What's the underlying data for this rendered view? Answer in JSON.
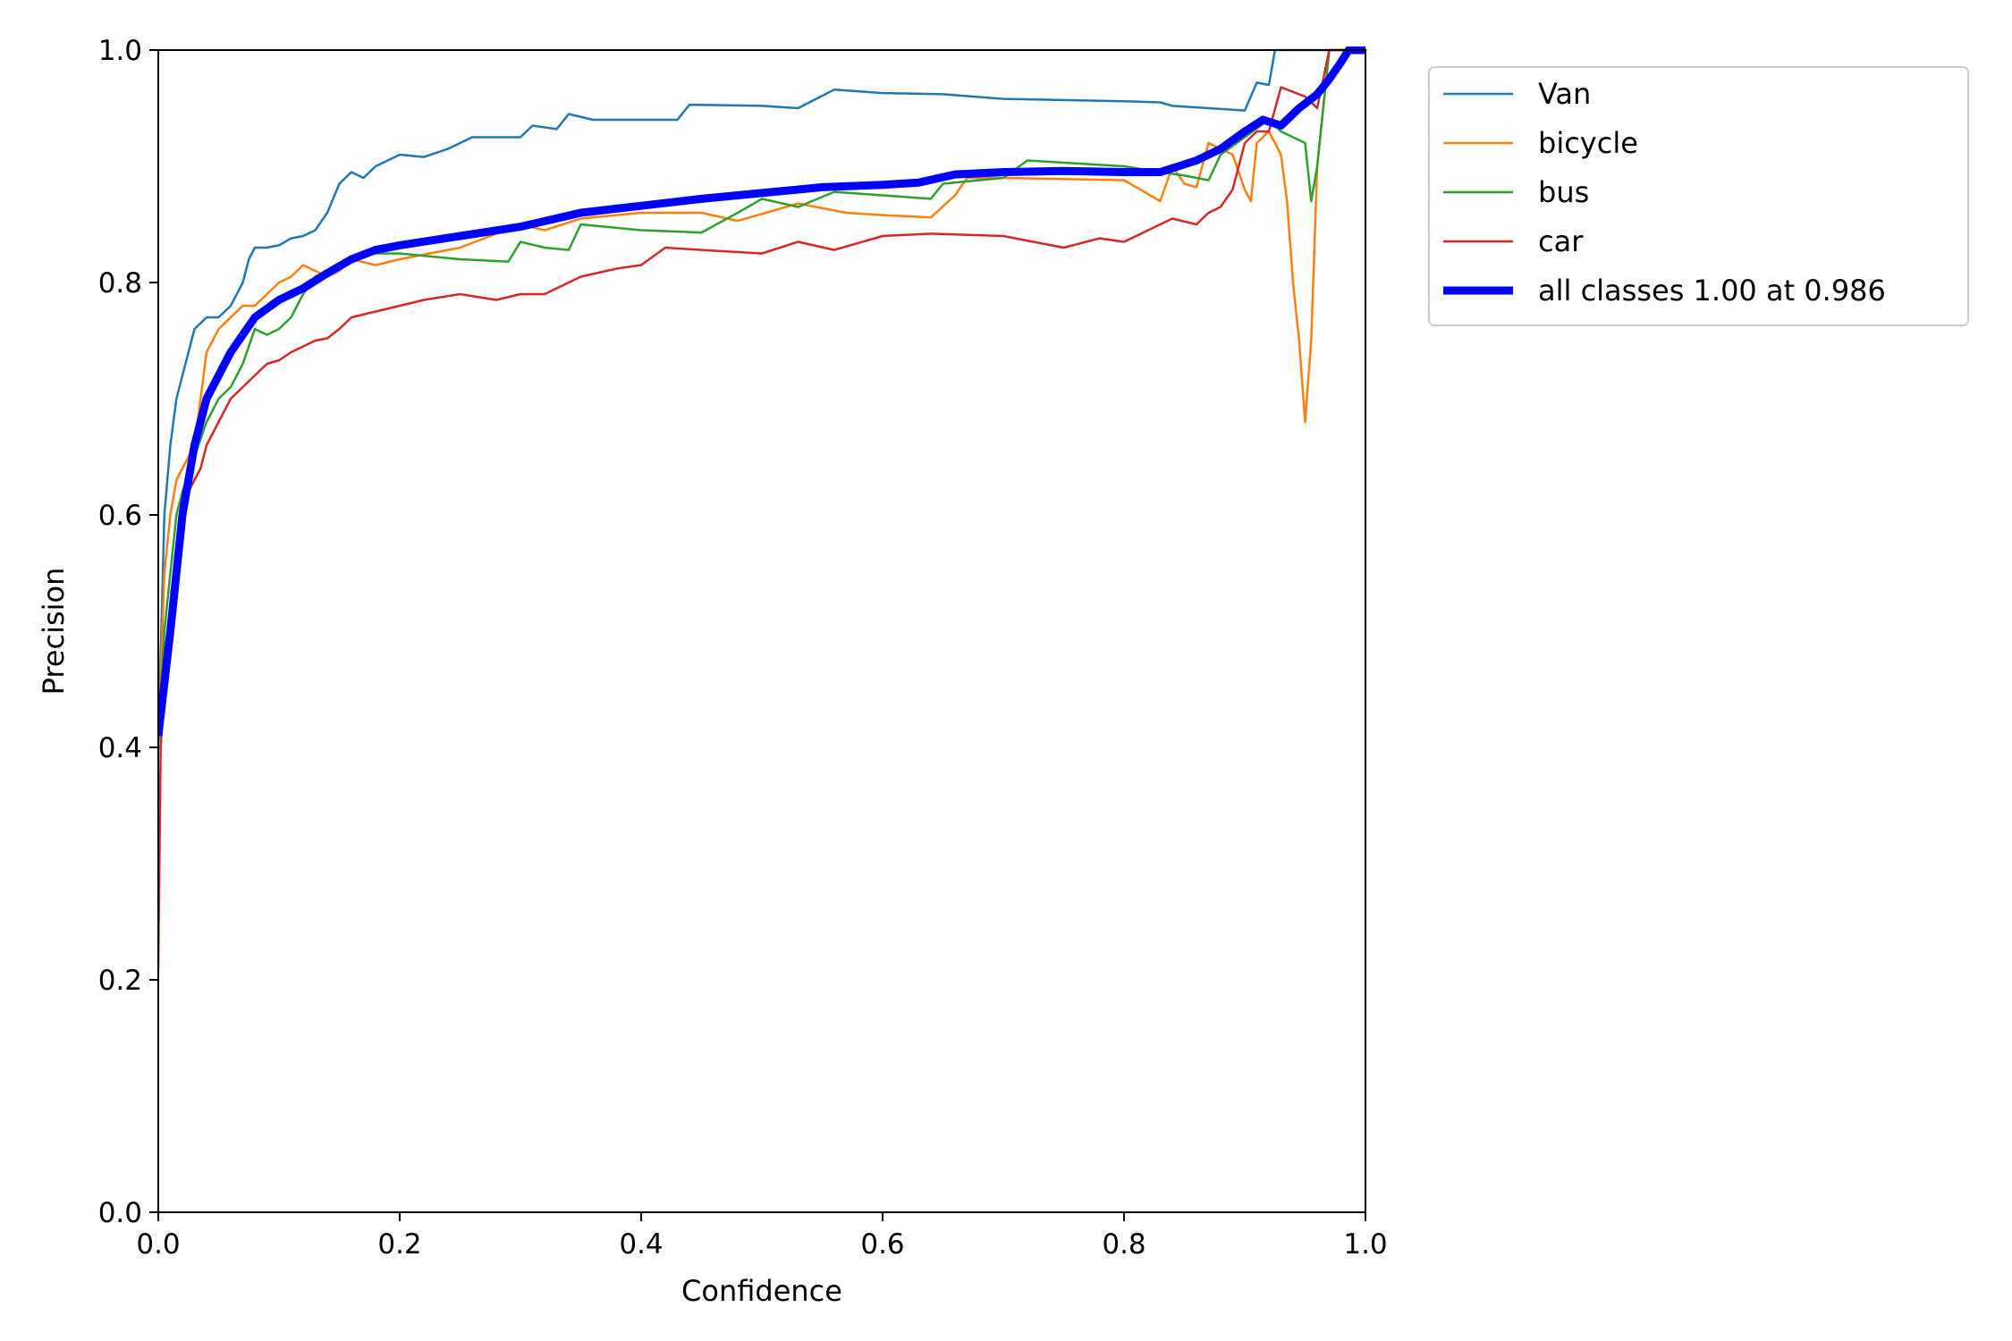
{
  "chart_data": {
    "type": "line",
    "title": "",
    "xlabel": "Confidence",
    "ylabel": "Precision",
    "xlim": [
      0,
      1
    ],
    "ylim": [
      0,
      1
    ],
    "xticks": [
      "0.0",
      "0.2",
      "0.4",
      "0.6",
      "0.8",
      "1.0"
    ],
    "yticks": [
      "0.0",
      "0.2",
      "0.4",
      "0.6",
      "0.8",
      "1.0"
    ],
    "grid": false,
    "legend_position": "outside-upper-right",
    "series": [
      {
        "name": "Van",
        "color": "#1f77b4",
        "emphasis": false,
        "x": [
          0.0,
          0.005,
          0.01,
          0.015,
          0.02,
          0.025,
          0.03,
          0.035,
          0.04,
          0.05,
          0.06,
          0.065,
          0.07,
          0.075,
          0.08,
          0.09,
          0.1,
          0.11,
          0.12,
          0.13,
          0.14,
          0.15,
          0.16,
          0.17,
          0.18,
          0.2,
          0.22,
          0.24,
          0.26,
          0.3,
          0.31,
          0.33,
          0.34,
          0.36,
          0.4,
          0.43,
          0.44,
          0.5,
          0.53,
          0.56,
          0.6,
          0.65,
          0.7,
          0.8,
          0.83,
          0.84,
          0.9,
          0.91,
          0.92,
          0.925,
          0.93,
          0.96,
          0.98,
          1.0
        ],
        "y": [
          0.4,
          0.6,
          0.66,
          0.7,
          0.72,
          0.74,
          0.76,
          0.765,
          0.77,
          0.77,
          0.78,
          0.79,
          0.8,
          0.82,
          0.83,
          0.83,
          0.832,
          0.838,
          0.84,
          0.845,
          0.86,
          0.885,
          0.895,
          0.89,
          0.9,
          0.91,
          0.908,
          0.915,
          0.925,
          0.925,
          0.935,
          0.932,
          0.945,
          0.94,
          0.94,
          0.94,
          0.953,
          0.952,
          0.95,
          0.966,
          0.963,
          0.962,
          0.958,
          0.956,
          0.955,
          0.952,
          0.948,
          0.972,
          0.97,
          1.0,
          1.0,
          1.0,
          1.0,
          1.0
        ]
      },
      {
        "name": "bicycle",
        "color": "#ff7f0e",
        "emphasis": false,
        "x": [
          0.0,
          0.005,
          0.01,
          0.015,
          0.02,
          0.03,
          0.04,
          0.05,
          0.06,
          0.07,
          0.08,
          0.09,
          0.1,
          0.11,
          0.12,
          0.13,
          0.14,
          0.15,
          0.16,
          0.18,
          0.2,
          0.25,
          0.3,
          0.32,
          0.35,
          0.4,
          0.45,
          0.48,
          0.53,
          0.57,
          0.6,
          0.64,
          0.66,
          0.67,
          0.7,
          0.8,
          0.83,
          0.84,
          0.85,
          0.86,
          0.87,
          0.88,
          0.89,
          0.9,
          0.905,
          0.91,
          0.92,
          0.93,
          0.935,
          0.94,
          0.945,
          0.95,
          0.955,
          0.96,
          0.97,
          1.0
        ],
        "y": [
          0.4,
          0.55,
          0.6,
          0.63,
          0.64,
          0.66,
          0.74,
          0.76,
          0.77,
          0.78,
          0.78,
          0.79,
          0.8,
          0.805,
          0.815,
          0.81,
          0.805,
          0.81,
          0.82,
          0.815,
          0.82,
          0.83,
          0.85,
          0.845,
          0.855,
          0.86,
          0.86,
          0.853,
          0.868,
          0.86,
          0.858,
          0.856,
          0.875,
          0.89,
          0.89,
          0.888,
          0.87,
          0.9,
          0.885,
          0.882,
          0.92,
          0.915,
          0.91,
          0.88,
          0.87,
          0.92,
          0.93,
          0.91,
          0.87,
          0.8,
          0.75,
          0.68,
          0.75,
          0.9,
          1.0,
          1.0
        ]
      },
      {
        "name": "bus",
        "color": "#2ca02c",
        "emphasis": false,
        "x": [
          0.0,
          0.005,
          0.01,
          0.015,
          0.02,
          0.03,
          0.04,
          0.05,
          0.06,
          0.07,
          0.08,
          0.09,
          0.1,
          0.11,
          0.12,
          0.13,
          0.14,
          0.15,
          0.17,
          0.2,
          0.25,
          0.29,
          0.3,
          0.32,
          0.34,
          0.35,
          0.4,
          0.45,
          0.48,
          0.5,
          0.53,
          0.56,
          0.6,
          0.64,
          0.65,
          0.7,
          0.72,
          0.8,
          0.83,
          0.85,
          0.87,
          0.88,
          0.9,
          0.92,
          0.93,
          0.95,
          0.955,
          0.96,
          0.97,
          1.0
        ],
        "y": [
          0.4,
          0.5,
          0.55,
          0.6,
          0.62,
          0.65,
          0.68,
          0.7,
          0.71,
          0.73,
          0.76,
          0.755,
          0.76,
          0.77,
          0.79,
          0.805,
          0.81,
          0.815,
          0.825,
          0.825,
          0.82,
          0.818,
          0.835,
          0.83,
          0.828,
          0.85,
          0.845,
          0.843,
          0.86,
          0.872,
          0.865,
          0.878,
          0.875,
          0.872,
          0.885,
          0.89,
          0.905,
          0.9,
          0.895,
          0.892,
          0.888,
          0.91,
          0.925,
          0.94,
          0.93,
          0.92,
          0.87,
          0.9,
          1.0,
          1.0
        ]
      },
      {
        "name": "car",
        "color": "#d62728",
        "emphasis": false,
        "x": [
          0.0,
          0.002,
          0.005,
          0.01,
          0.015,
          0.02,
          0.025,
          0.03,
          0.035,
          0.04,
          0.05,
          0.06,
          0.07,
          0.08,
          0.09,
          0.1,
          0.11,
          0.12,
          0.13,
          0.14,
          0.15,
          0.16,
          0.18,
          0.2,
          0.22,
          0.25,
          0.28,
          0.3,
          0.32,
          0.35,
          0.38,
          0.4,
          0.42,
          0.45,
          0.5,
          0.53,
          0.56,
          0.6,
          0.64,
          0.7,
          0.75,
          0.78,
          0.8,
          0.82,
          0.84,
          0.86,
          0.87,
          0.88,
          0.89,
          0.9,
          0.91,
          0.92,
          0.93,
          0.95,
          0.96,
          0.97,
          1.0
        ],
        "y": [
          0.21,
          0.4,
          0.45,
          0.52,
          0.56,
          0.6,
          0.62,
          0.63,
          0.64,
          0.66,
          0.68,
          0.7,
          0.71,
          0.72,
          0.73,
          0.733,
          0.74,
          0.745,
          0.75,
          0.752,
          0.76,
          0.77,
          0.775,
          0.78,
          0.785,
          0.79,
          0.785,
          0.79,
          0.79,
          0.805,
          0.812,
          0.815,
          0.83,
          0.828,
          0.825,
          0.835,
          0.828,
          0.84,
          0.842,
          0.84,
          0.83,
          0.838,
          0.835,
          0.845,
          0.855,
          0.85,
          0.86,
          0.865,
          0.88,
          0.92,
          0.93,
          0.93,
          0.968,
          0.96,
          0.95,
          1.0,
          1.0
        ]
      },
      {
        "name": "all classes 1.00 at 0.986",
        "color": "#0000ff",
        "emphasis": true,
        "x": [
          0.0,
          0.01,
          0.02,
          0.03,
          0.04,
          0.05,
          0.06,
          0.08,
          0.1,
          0.12,
          0.14,
          0.16,
          0.18,
          0.2,
          0.25,
          0.3,
          0.35,
          0.4,
          0.45,
          0.5,
          0.55,
          0.6,
          0.63,
          0.66,
          0.7,
          0.75,
          0.8,
          0.83,
          0.86,
          0.88,
          0.9,
          0.915,
          0.93,
          0.945,
          0.96,
          0.97,
          0.98,
          0.986,
          1.0
        ],
        "y": [
          0.41,
          0.5,
          0.6,
          0.66,
          0.7,
          0.72,
          0.74,
          0.77,
          0.785,
          0.795,
          0.808,
          0.82,
          0.828,
          0.832,
          0.84,
          0.848,
          0.86,
          0.866,
          0.872,
          0.877,
          0.882,
          0.884,
          0.886,
          0.893,
          0.895,
          0.896,
          0.895,
          0.895,
          0.905,
          0.915,
          0.93,
          0.94,
          0.935,
          0.95,
          0.962,
          0.975,
          0.99,
          1.0,
          1.0
        ]
      }
    ]
  }
}
